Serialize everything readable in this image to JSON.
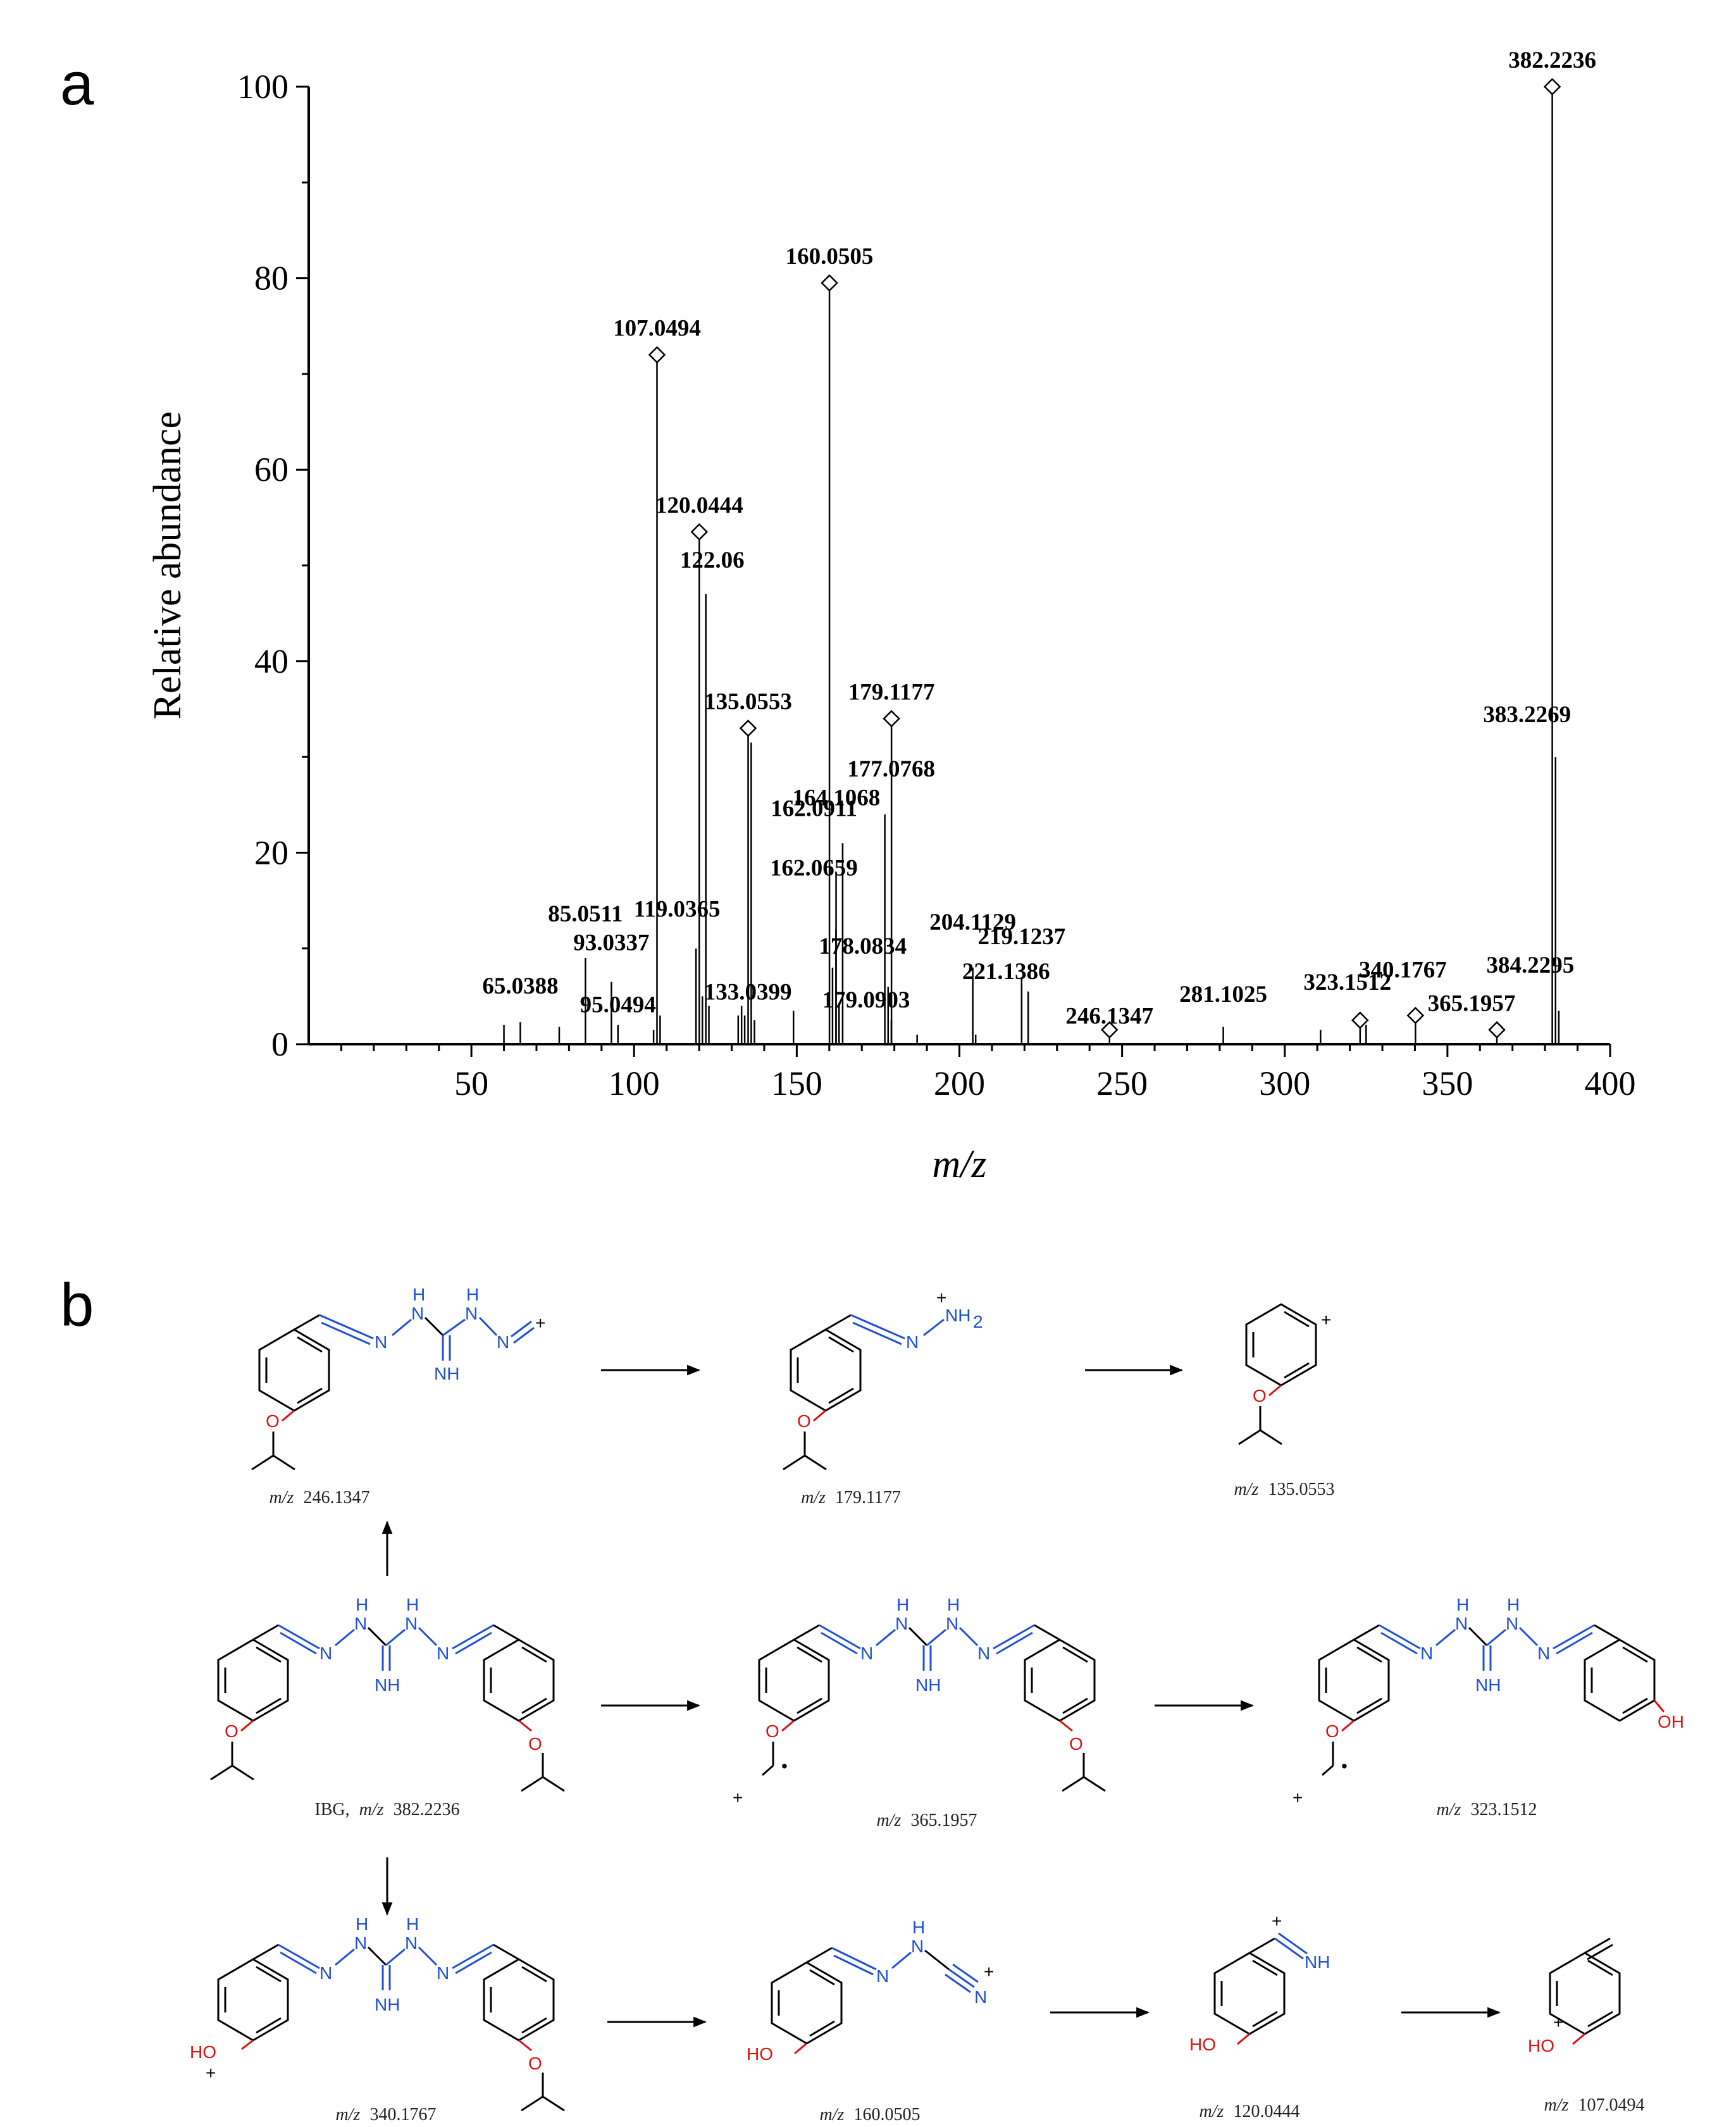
{
  "panels": {
    "a_label": "a",
    "b_label": "b"
  },
  "chart_data": {
    "type": "bar",
    "title": "",
    "xlabel": "m/z",
    "ylabel": "Relative abundance",
    "xlim": [
      0,
      400
    ],
    "ylim": [
      0,
      100
    ],
    "x_ticks": [
      50,
      100,
      150,
      200,
      250,
      300,
      350,
      400
    ],
    "y_ticks": [
      0,
      20,
      40,
      60,
      80,
      100
    ],
    "grid": false,
    "legend": "none",
    "peaks": [
      {
        "mz": 60.0,
        "y": 2.0
      },
      {
        "mz": 65.0388,
        "y": 2.3,
        "label": "65.0388"
      },
      {
        "mz": 77.0,
        "y": 1.8
      },
      {
        "mz": 85.0511,
        "y": 9.0,
        "label": "85.0511"
      },
      {
        "mz": 93.0337,
        "y": 6.5,
        "label": "93.0337"
      },
      {
        "mz": 95.0494,
        "y": 2.0,
        "label": "95.0494"
      },
      {
        "mz": 106.0,
        "y": 1.5
      },
      {
        "mz": 107.0494,
        "y": 72.0,
        "label": "107.0494",
        "marker": true
      },
      {
        "mz": 108.0,
        "y": 3.0
      },
      {
        "mz": 119.0365,
        "y": 10.0,
        "label": "119.0365"
      },
      {
        "mz": 120.0444,
        "y": 53.5,
        "label": "120.0444",
        "marker": true
      },
      {
        "mz": 121.0,
        "y": 5.0
      },
      {
        "mz": 122.06,
        "y": 47.0,
        "label": "122.06"
      },
      {
        "mz": 123.0,
        "y": 4.0
      },
      {
        "mz": 132.0,
        "y": 3.0
      },
      {
        "mz": 133.0399,
        "y": 4.0,
        "label": "133.0399"
      },
      {
        "mz": 134.0,
        "y": 3.0
      },
      {
        "mz": 135.0553,
        "y": 33.0,
        "label": "135.0553",
        "marker": true
      },
      {
        "mz": 136.0,
        "y": 31.5
      },
      {
        "mz": 137.0,
        "y": 2.5
      },
      {
        "mz": 149.0,
        "y": 3.5
      },
      {
        "mz": 160.0505,
        "y": 79.5,
        "label": "160.0505",
        "marker": true
      },
      {
        "mz": 161.0,
        "y": 8.0
      },
      {
        "mz": 162.0659,
        "y": 12.0,
        "label": "162.0659"
      },
      {
        "mz": 162.0911,
        "y": 18.0,
        "label": "162.0911"
      },
      {
        "mz": 163.0,
        "y": 4.0
      },
      {
        "mz": 164.1068,
        "y": 21.0,
        "label": "164.1068"
      },
      {
        "mz": 177.0768,
        "y": 24.0,
        "label": "177.0768"
      },
      {
        "mz": 178.0834,
        "y": 6.0,
        "label": "178.0834"
      },
      {
        "mz": 179.0903,
        "y": 2.5,
        "label": "179.0903"
      },
      {
        "mz": 179.1177,
        "y": 34.0,
        "label": "179.1177",
        "marker": true
      },
      {
        "mz": 187.0,
        "y": 1.0
      },
      {
        "mz": 204.1129,
        "y": 8.0,
        "label": "204.1129"
      },
      {
        "mz": 205.0,
        "y": 1.0
      },
      {
        "mz": 219.1237,
        "y": 7.0,
        "label": "219.1237"
      },
      {
        "mz": 221.1386,
        "y": 5.5,
        "label": "221.1386"
      },
      {
        "mz": 246.1347,
        "y": 1.5,
        "label": "246.1347",
        "marker": true
      },
      {
        "mz": 281.1025,
        "y": 1.8,
        "label": "281.1025"
      },
      {
        "mz": 311.0,
        "y": 1.5
      },
      {
        "mz": 323.1512,
        "y": 2.5,
        "label": "323.1512",
        "marker": true
      },
      {
        "mz": 325.0,
        "y": 2.0
      },
      {
        "mz": 340.1767,
        "y": 3.0,
        "label": "340.1767",
        "marker": true
      },
      {
        "mz": 365.1957,
        "y": 1.5,
        "label": "365.1957",
        "marker": true
      },
      {
        "mz": 382.2236,
        "y": 100.0,
        "label": "382.2236",
        "marker": true
      },
      {
        "mz": 383.2269,
        "y": 30.0,
        "label": "383.2269"
      },
      {
        "mz": 384.2295,
        "y": 3.5,
        "label": "384.2295"
      }
    ]
  },
  "scheme": {
    "compounds": [
      {
        "id": "c246",
        "prefix": "m/z",
        "value": "246.1347"
      },
      {
        "id": "c179",
        "prefix": "m/z",
        "value": "179.1177"
      },
      {
        "id": "c135",
        "prefix": "m/z",
        "value": "135.0553"
      },
      {
        "id": "cIBG",
        "name": "IBG,",
        "prefix": "m/z",
        "value": "382.2236"
      },
      {
        "id": "c365",
        "prefix": "m/z",
        "value": "365.1957"
      },
      {
        "id": "c323",
        "prefix": "m/z",
        "value": "323.1512"
      },
      {
        "id": "c340",
        "prefix": "m/z",
        "value": "340.1767"
      },
      {
        "id": "c160",
        "prefix": "m/z",
        "value": "160.0505"
      },
      {
        "id": "c120",
        "prefix": "m/z",
        "value": "120.0444"
      },
      {
        "id": "c107",
        "prefix": "m/z",
        "value": "107.0494"
      }
    ],
    "atoms": {
      "H": "H",
      "N": "N",
      "NH": "NH",
      "NH2": "NH",
      "two": "2",
      "O": "O",
      "OH": "OH",
      "HO": "HO",
      "plus": "+",
      "dot": "•"
    }
  }
}
